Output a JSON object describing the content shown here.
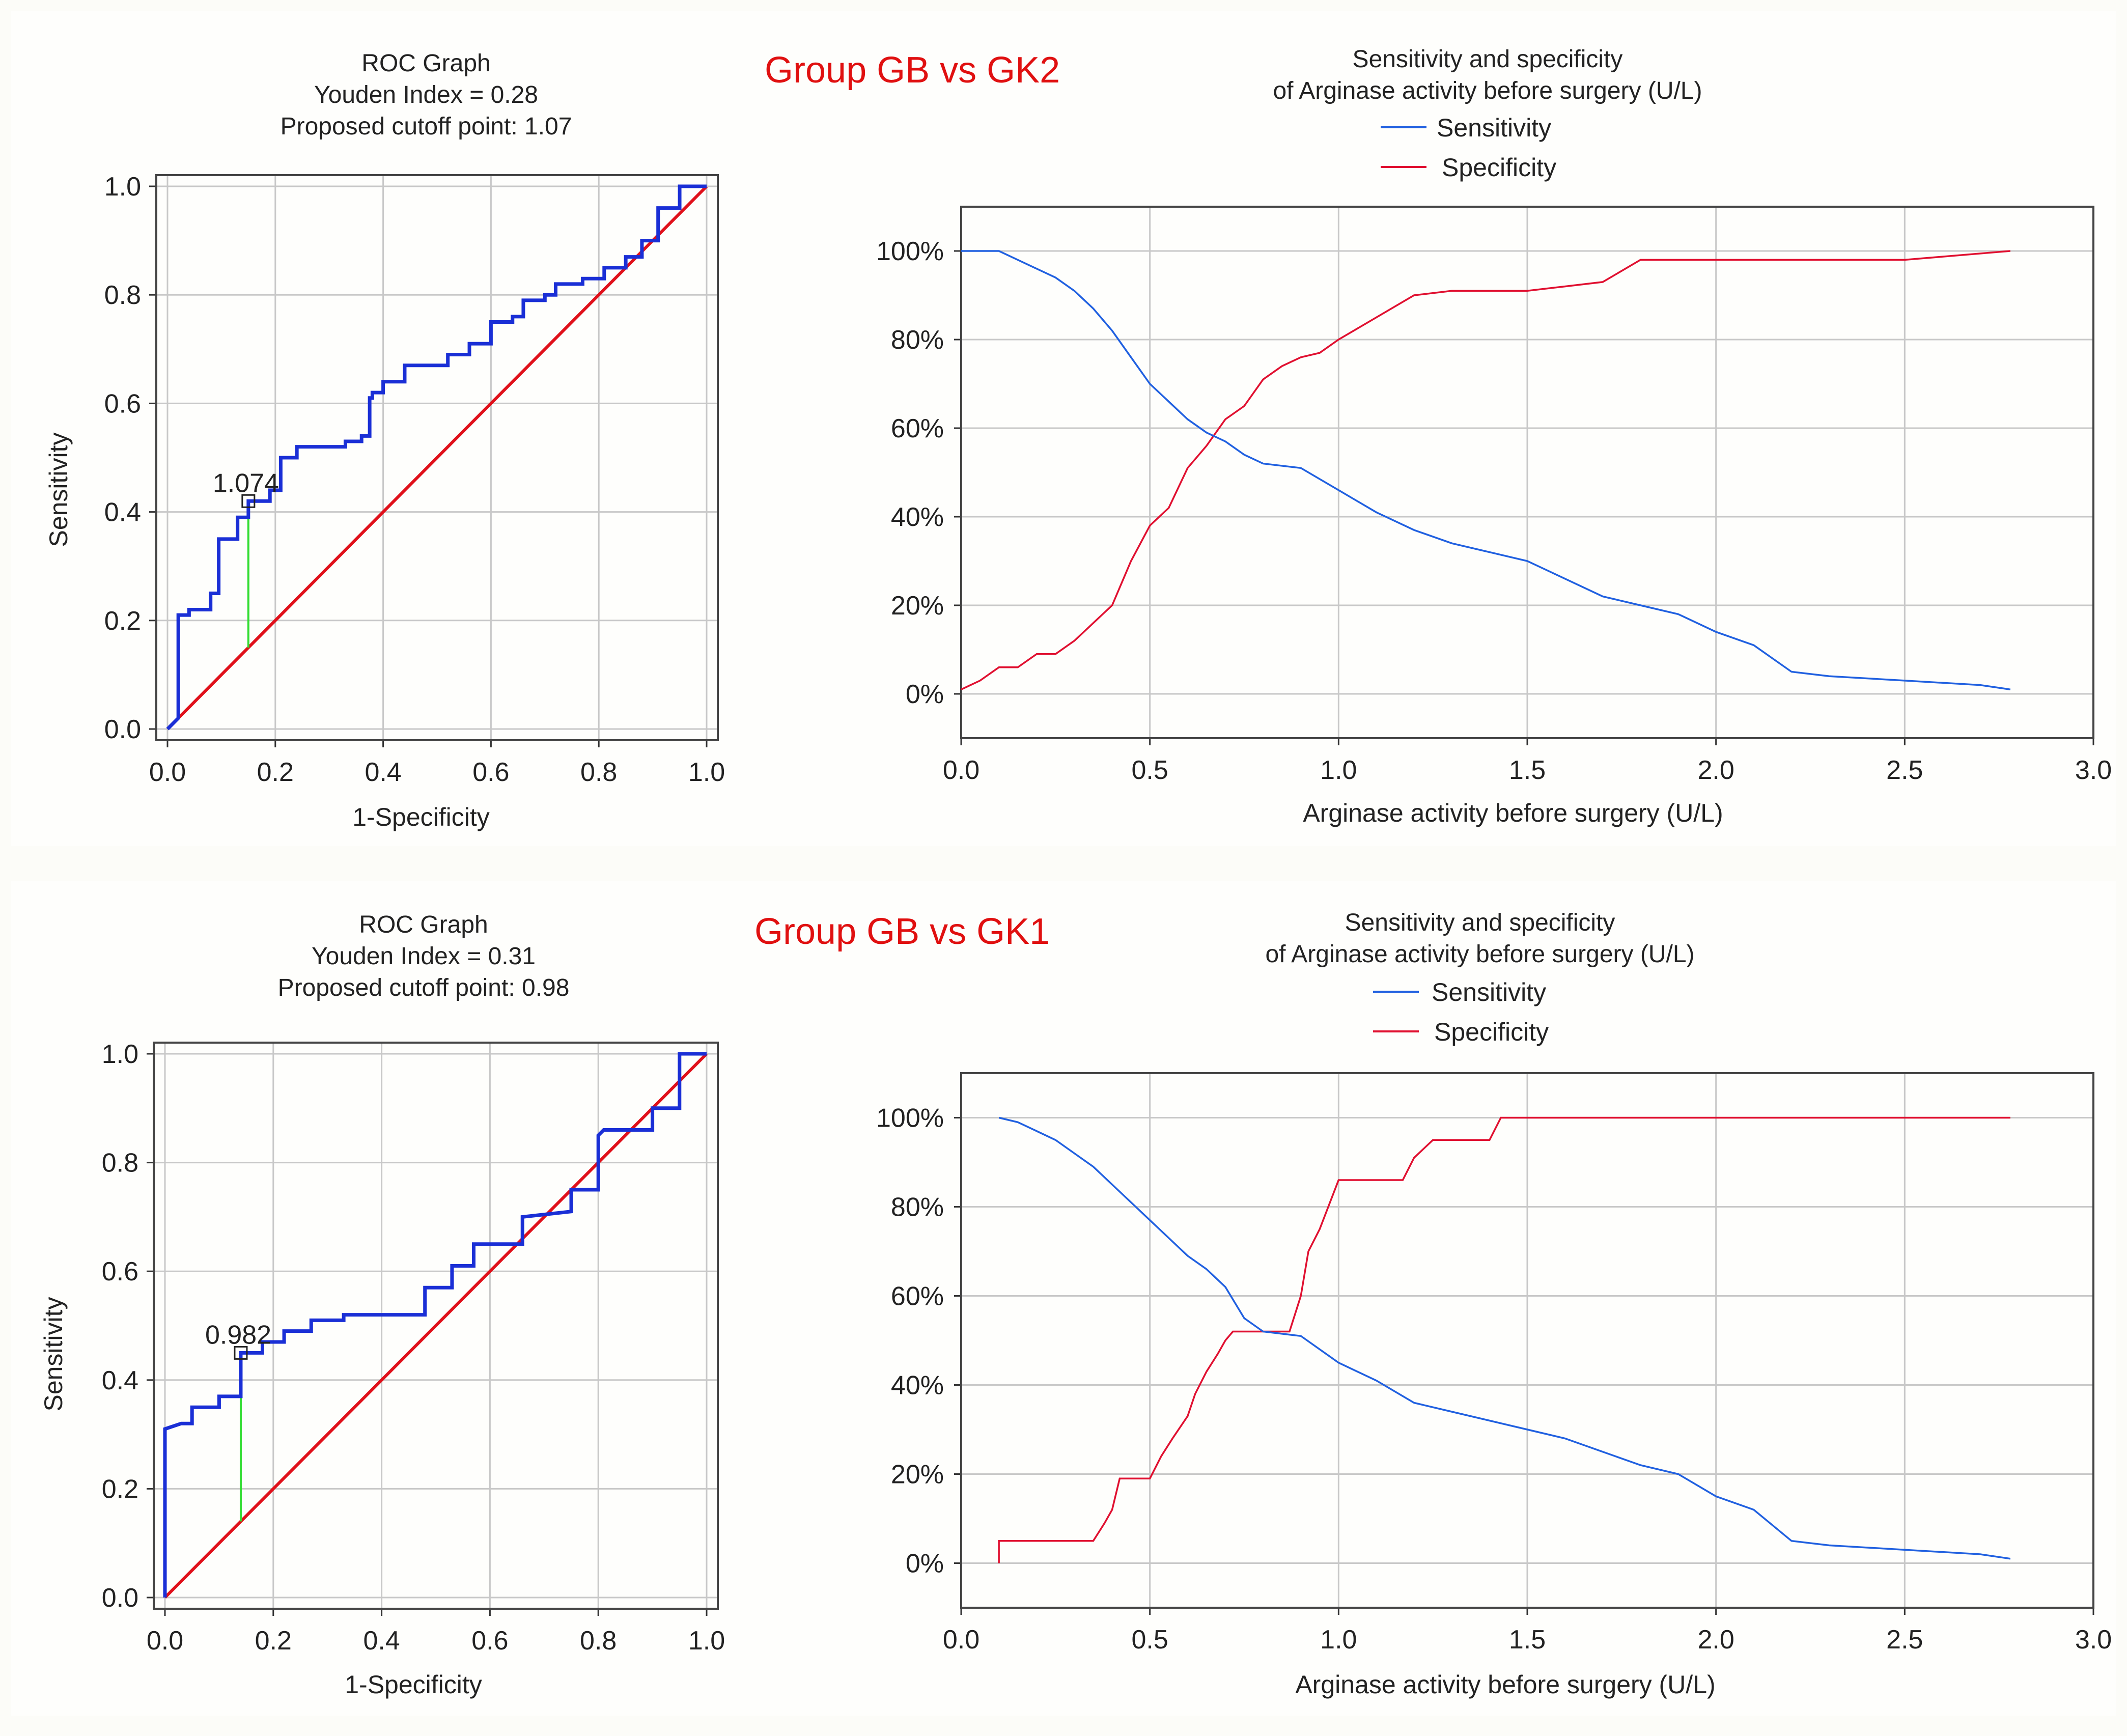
{
  "colors": {
    "roc": "#1a2fd6",
    "diagonal": "#e0101a",
    "youden": "#33dd33",
    "sensitivity": "#2060e0",
    "specificity": "#e01030",
    "group_title": "#e01010"
  },
  "panels": [
    {
      "group_title": "Group GB vs GK2",
      "roc": {
        "title_lines": [
          "ROC Graph",
          "Youden Index = 0.28",
          "Proposed cutoff point: 1.07"
        ],
        "xlabel": "1-Specificity",
        "ylabel": "Sensitivity",
        "x_ticks": [
          "0.0",
          "0.2",
          "0.4",
          "0.6",
          "0.8",
          "1.0"
        ],
        "y_ticks": [
          "0.0",
          "0.2",
          "0.4",
          "0.6",
          "0.8",
          "1.0"
        ],
        "cutoff_label": "1.074"
      },
      "sens_spec": {
        "title_lines": [
          "Sensitivity and specificity",
          "of Arginase activity before surgery (U/L)"
        ],
        "legend": [
          "Sensitivity",
          "Specificity"
        ],
        "xlabel": "Arginase activity before surgery (U/L)",
        "x_ticks": [
          "0.0",
          "0.5",
          "1.0",
          "1.5",
          "2.0",
          "2.5",
          "3.0"
        ],
        "y_ticks": [
          "0%",
          "20%",
          "40%",
          "60%",
          "80%",
          "100%"
        ]
      }
    },
    {
      "group_title": "Group GB vs GK1",
      "roc": {
        "title_lines": [
          "ROC Graph",
          "Youden Index = 0.31",
          "Proposed cutoff point: 0.98"
        ],
        "xlabel": "1-Specificity",
        "ylabel": "Sensitivity",
        "x_ticks": [
          "0.0",
          "0.2",
          "0.4",
          "0.6",
          "0.8",
          "1.0"
        ],
        "y_ticks": [
          "0.0",
          "0.2",
          "0.4",
          "0.6",
          "0.8",
          "1.0"
        ],
        "cutoff_label": "0.982"
      },
      "sens_spec": {
        "title_lines": [
          "Sensitivity and specificity",
          "of Arginase activity before surgery (U/L)"
        ],
        "legend": [
          "Sensitivity",
          "Specificity"
        ],
        "xlabel": "Arginase activity before surgery (U/L)",
        "x_ticks": [
          "0.0",
          "0.5",
          "1.0",
          "1.5",
          "2.0",
          "2.5",
          "3.0"
        ],
        "y_ticks": [
          "0%",
          "20%",
          "40%",
          "60%",
          "80%",
          "100%"
        ]
      }
    }
  ],
  "chart_data": [
    {
      "type": "line",
      "title": "ROC Graph (Group GB vs GK2)",
      "subtitle": "Youden Index = 0.28; Proposed cutoff point: 1.07",
      "xlabel": "1-Specificity",
      "ylabel": "Sensitivity",
      "xlim": [
        0,
        1
      ],
      "ylim": [
        0,
        1
      ],
      "series": [
        {
          "name": "ROC curve",
          "x": [
            0.0,
            0.02,
            0.02,
            0.04,
            0.04,
            0.08,
            0.08,
            0.095,
            0.095,
            0.13,
            0.13,
            0.15,
            0.15,
            0.19,
            0.19,
            0.21,
            0.21,
            0.24,
            0.24,
            0.33,
            0.33,
            0.36,
            0.36,
            0.375,
            0.375,
            0.38,
            0.38,
            0.4,
            0.4,
            0.44,
            0.44,
            0.52,
            0.52,
            0.56,
            0.56,
            0.6,
            0.6,
            0.64,
            0.64,
            0.66,
            0.66,
            0.7,
            0.7,
            0.72,
            0.72,
            0.77,
            0.77,
            0.81,
            0.81,
            0.85,
            0.85,
            0.88,
            0.88,
            0.91,
            0.91,
            0.95,
            0.95,
            1.0
          ],
          "y": [
            0.0,
            0.02,
            0.21,
            0.21,
            0.22,
            0.22,
            0.25,
            0.25,
            0.35,
            0.35,
            0.39,
            0.39,
            0.42,
            0.42,
            0.44,
            0.44,
            0.5,
            0.5,
            0.52,
            0.52,
            0.53,
            0.53,
            0.54,
            0.54,
            0.61,
            0.61,
            0.62,
            0.62,
            0.64,
            0.64,
            0.67,
            0.67,
            0.69,
            0.69,
            0.71,
            0.71,
            0.75,
            0.75,
            0.76,
            0.76,
            0.79,
            0.79,
            0.8,
            0.8,
            0.82,
            0.82,
            0.83,
            0.83,
            0.85,
            0.85,
            0.87,
            0.87,
            0.9,
            0.9,
            0.96,
            0.96,
            1.0,
            1.0
          ]
        },
        {
          "name": "Reference diagonal",
          "x": [
            0,
            1
          ],
          "y": [
            0,
            1
          ]
        },
        {
          "name": "Youden segment",
          "x": [
            0.15,
            0.15
          ],
          "y": [
            0.15,
            0.42
          ]
        }
      ],
      "annotations": [
        {
          "text": "1.074",
          "x": 0.15,
          "y": 0.42
        }
      ]
    },
    {
      "type": "line",
      "title": "Sensitivity and specificity of Arginase activity before surgery (U/L) (Group GB vs GK2)",
      "xlabel": "Arginase activity before surgery (U/L)",
      "ylabel": "",
      "xlim": [
        0,
        3
      ],
      "ylim": [
        -10,
        110
      ],
      "legend": "top",
      "series": [
        {
          "name": "Sensitivity",
          "x": [
            0.0,
            0.1,
            0.15,
            0.2,
            0.25,
            0.3,
            0.35,
            0.4,
            0.45,
            0.5,
            0.55,
            0.6,
            0.65,
            0.7,
            0.75,
            0.8,
            0.9,
            1.0,
            1.1,
            1.2,
            1.3,
            1.4,
            1.5,
            1.6,
            1.7,
            1.8,
            1.9,
            2.0,
            2.1,
            2.2,
            2.3,
            2.5,
            2.7,
            2.78
          ],
          "y": [
            100,
            100,
            98,
            96,
            94,
            91,
            87,
            82,
            76,
            70,
            66,
            62,
            59,
            57,
            54,
            52,
            51,
            46,
            41,
            37,
            34,
            32,
            30,
            26,
            22,
            20,
            18,
            14,
            11,
            5,
            4,
            3,
            2,
            1
          ]
        },
        {
          "name": "Specificity",
          "x": [
            0.0,
            0.05,
            0.1,
            0.15,
            0.2,
            0.25,
            0.3,
            0.35,
            0.4,
            0.45,
            0.5,
            0.55,
            0.6,
            0.65,
            0.7,
            0.75,
            0.8,
            0.85,
            0.9,
            0.95,
            1.0,
            1.1,
            1.2,
            1.3,
            1.4,
            1.5,
            1.6,
            1.7,
            1.8,
            2.0,
            2.5,
            2.78
          ],
          "y": [
            1,
            3,
            6,
            6,
            9,
            9,
            12,
            16,
            20,
            30,
            38,
            42,
            51,
            56,
            62,
            65,
            71,
            74,
            76,
            77,
            80,
            85,
            90,
            91,
            91,
            91,
            92,
            93,
            98,
            98,
            98,
            100
          ]
        }
      ]
    },
    {
      "type": "line",
      "title": "ROC Graph (Group GB vs GK1)",
      "subtitle": "Youden Index = 0.31; Proposed cutoff point: 0.98",
      "xlabel": "1-Specificity",
      "ylabel": "Sensitivity",
      "xlim": [
        0,
        1
      ],
      "ylim": [
        0,
        1
      ],
      "series": [
        {
          "name": "ROC curve",
          "x": [
            0.0,
            0.0,
            0.03,
            0.05,
            0.05,
            0.1,
            0.1,
            0.14,
            0.14,
            0.18,
            0.18,
            0.22,
            0.22,
            0.27,
            0.27,
            0.33,
            0.33,
            0.48,
            0.48,
            0.53,
            0.53,
            0.57,
            0.57,
            0.66,
            0.66,
            0.75,
            0.75,
            0.8,
            0.8,
            0.81,
            0.81,
            0.9,
            0.9,
            0.95,
            0.95,
            1.0
          ],
          "y": [
            0.0,
            0.31,
            0.32,
            0.32,
            0.35,
            0.35,
            0.37,
            0.37,
            0.45,
            0.45,
            0.47,
            0.47,
            0.49,
            0.49,
            0.51,
            0.51,
            0.52,
            0.52,
            0.57,
            0.57,
            0.61,
            0.61,
            0.65,
            0.65,
            0.7,
            0.71,
            0.75,
            0.75,
            0.85,
            0.86,
            0.86,
            0.86,
            0.9,
            0.9,
            1.0,
            1.0
          ]
        },
        {
          "name": "Reference diagonal",
          "x": [
            0,
            1
          ],
          "y": [
            0,
            1
          ]
        },
        {
          "name": "Youden segment",
          "x": [
            0.14,
            0.14
          ],
          "y": [
            0.14,
            0.45
          ]
        }
      ],
      "annotations": [
        {
          "text": "0.982",
          "x": 0.14,
          "y": 0.45
        }
      ]
    },
    {
      "type": "line",
      "title": "Sensitivity and specificity of Arginase activity before surgery (U/L) (Group GB vs GK1)",
      "xlabel": "Arginase activity before surgery (U/L)",
      "ylabel": "",
      "xlim": [
        0,
        3
      ],
      "ylim": [
        -10,
        110
      ],
      "legend": "top",
      "series": [
        {
          "name": "Sensitivity",
          "x": [
            0.1,
            0.15,
            0.2,
            0.25,
            0.3,
            0.35,
            0.4,
            0.45,
            0.5,
            0.55,
            0.6,
            0.65,
            0.7,
            0.75,
            0.8,
            0.9,
            1.0,
            1.1,
            1.2,
            1.3,
            1.4,
            1.5,
            1.6,
            1.7,
            1.8,
            1.9,
            2.0,
            2.1,
            2.2,
            2.3,
            2.5,
            2.7,
            2.78
          ],
          "y": [
            100,
            99,
            97,
            95,
            92,
            89,
            85,
            81,
            77,
            73,
            69,
            66,
            62,
            55,
            52,
            51,
            45,
            41,
            36,
            34,
            32,
            30,
            28,
            25,
            22,
            20,
            15,
            12,
            5,
            4,
            3,
            2,
            1
          ]
        },
        {
          "name": "Specificity",
          "x": [
            0.1,
            0.1,
            0.2,
            0.3,
            0.35,
            0.38,
            0.4,
            0.42,
            0.5,
            0.53,
            0.56,
            0.6,
            0.62,
            0.65,
            0.68,
            0.7,
            0.72,
            0.75,
            0.8,
            0.87,
            0.9,
            0.92,
            0.95,
            1.0,
            1.1,
            1.17,
            1.2,
            1.25,
            1.3,
            1.4,
            1.43,
            2.0,
            2.78
          ],
          "y": [
            0,
            5,
            5,
            5,
            5,
            9,
            12,
            19,
            19,
            24,
            28,
            33,
            38,
            43,
            47,
            50,
            52,
            52,
            52,
            52,
            60,
            70,
            75,
            86,
            86,
            86,
            91,
            95,
            95,
            95,
            100,
            100,
            100
          ]
        }
      ]
    }
  ]
}
